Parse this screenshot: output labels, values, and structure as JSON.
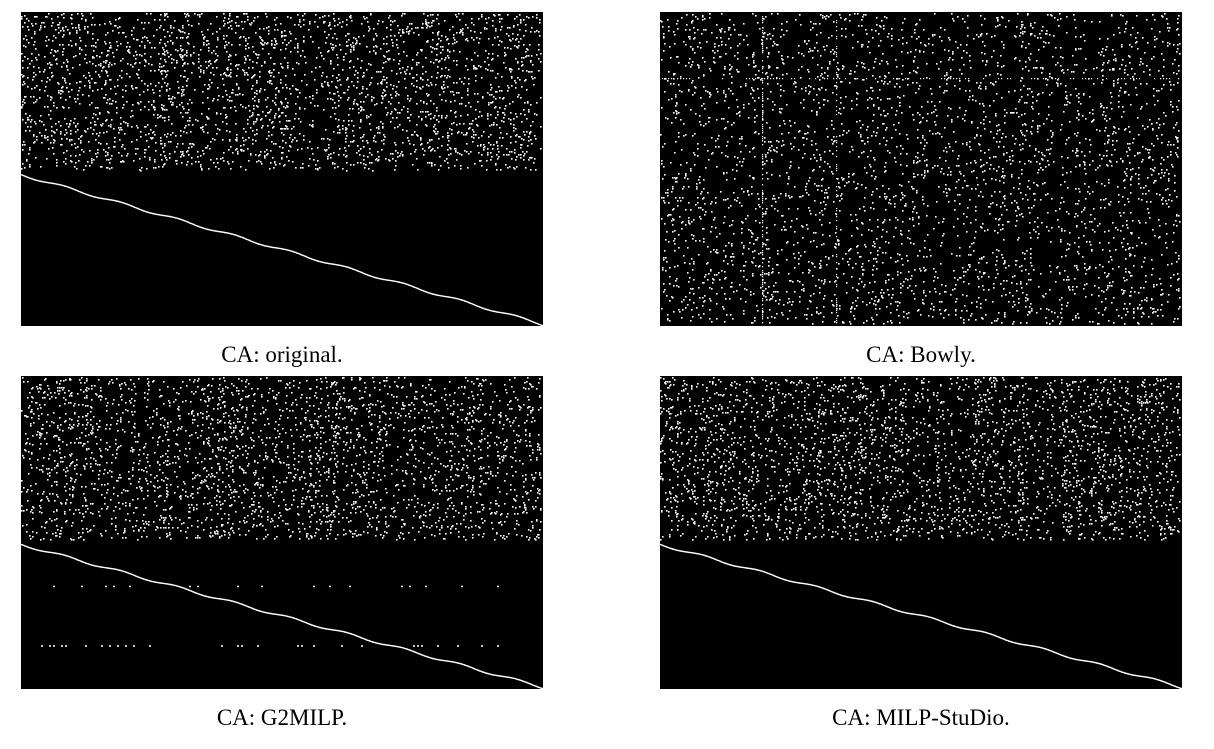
{
  "figure": {
    "panels": [
      {
        "caption": "CA: original.",
        "pattern": "block-diagonal",
        "dense_fraction": 0.51,
        "extra_bands": []
      },
      {
        "caption": "CA: Bowly.",
        "pattern": "uniform",
        "dense_fraction": 1.0,
        "extra_bands": []
      },
      {
        "caption": "CA: G2MILP.",
        "pattern": "block-diagonal",
        "dense_fraction": 0.53,
        "extra_bands": [
          0.67,
          0.86
        ]
      },
      {
        "caption": "CA: MILP-StuDio.",
        "pattern": "block-diagonal",
        "dense_fraction": 0.53,
        "extra_bands": []
      }
    ],
    "colors": {
      "background": "#000000",
      "nonzero": "#ffffff"
    }
  }
}
